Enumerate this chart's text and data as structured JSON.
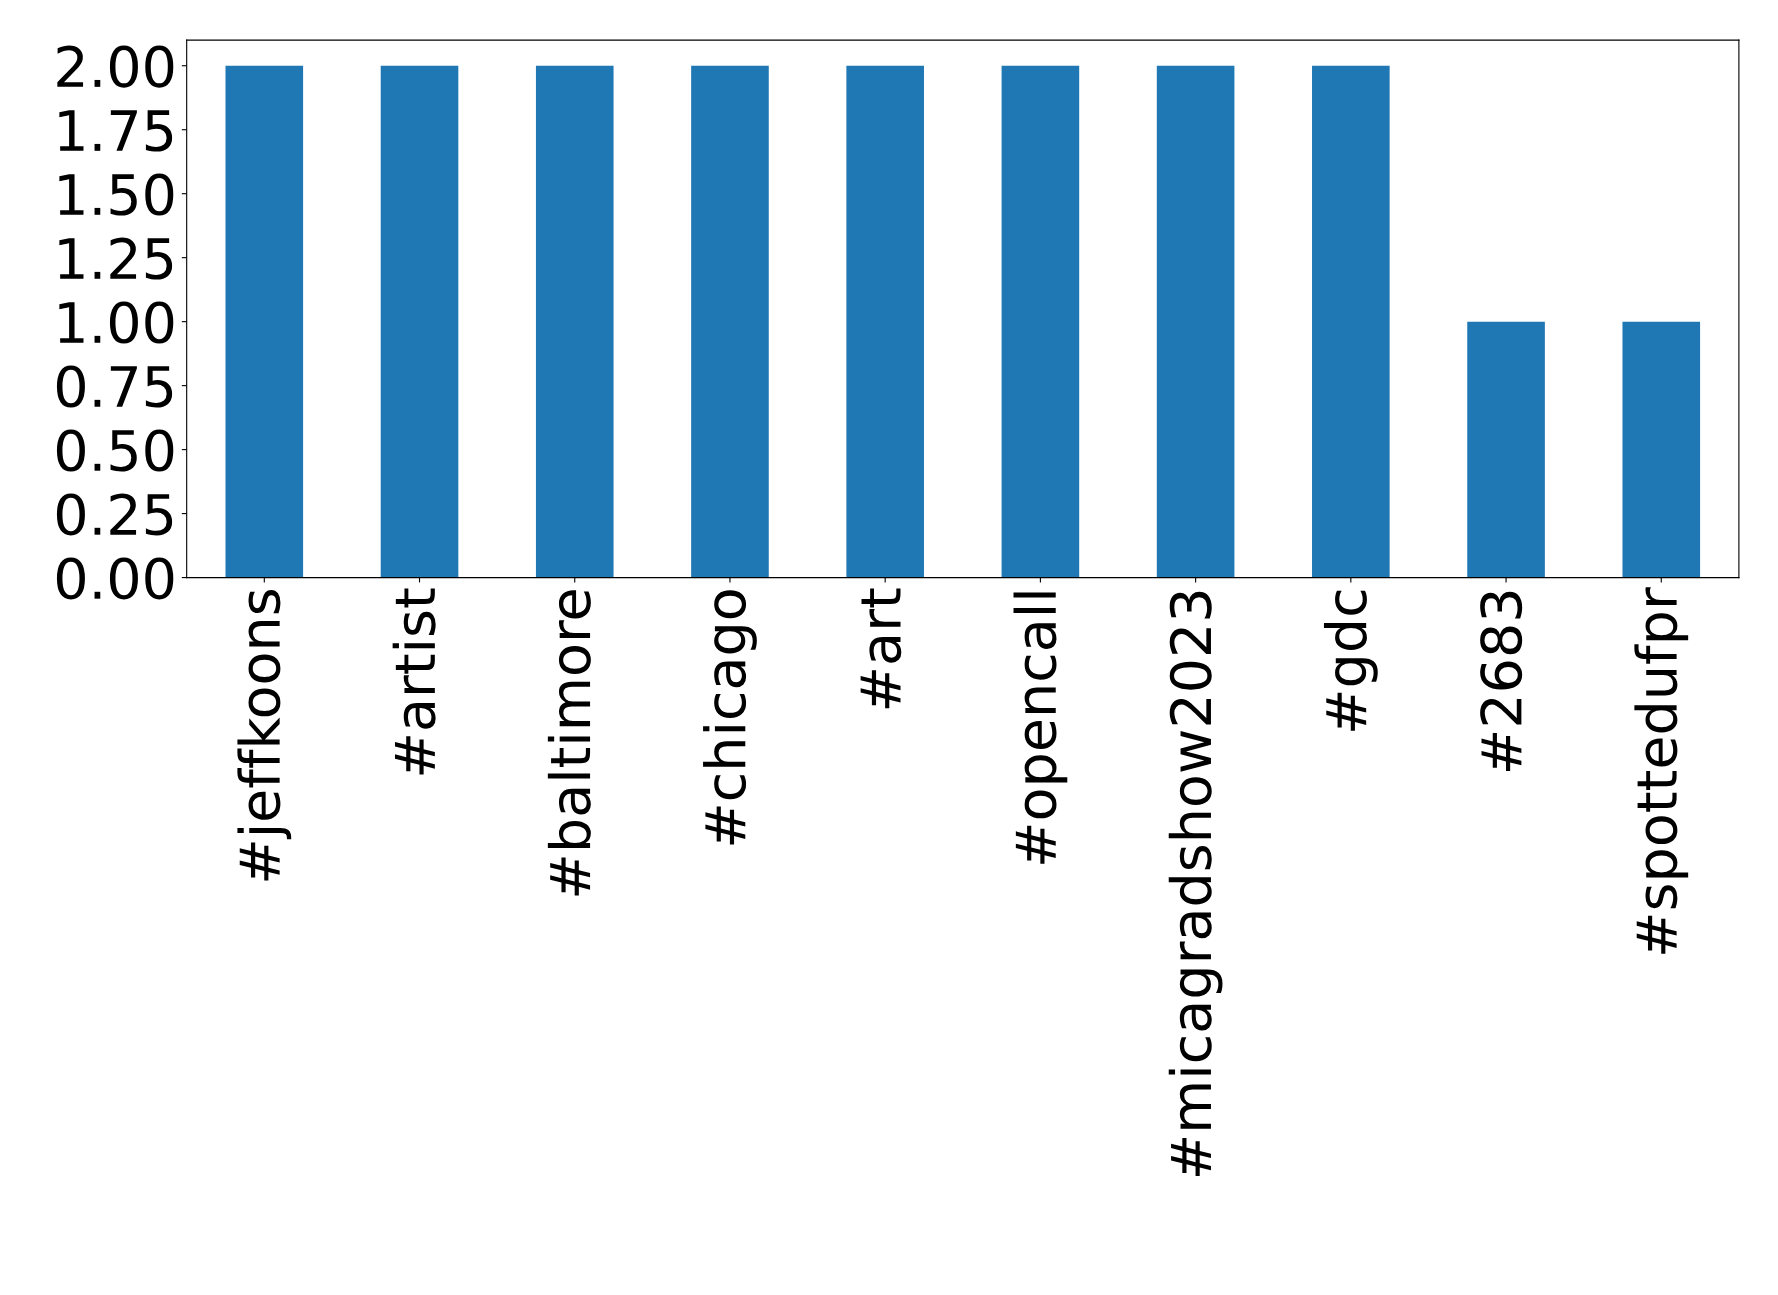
{
  "chart_data": {
    "type": "bar",
    "categories": [
      "#jeffkoons",
      "#artist",
      "#baltimore",
      "#chicago",
      "#art",
      "#opencall",
      "#micagradshow2023",
      "#gdc",
      "#2683",
      "#spottedufpr"
    ],
    "values": [
      2,
      2,
      2,
      2,
      2,
      2,
      2,
      2,
      1,
      1
    ],
    "color": "#1f77b4",
    "ylim": [
      0,
      2.1
    ],
    "yticks": [
      {
        "value": 0,
        "label": "0.00"
      },
      {
        "value": 0.25,
        "label": "0.25"
      },
      {
        "value": 0.5,
        "label": "0.50"
      },
      {
        "value": 0.75,
        "label": "0.75"
      },
      {
        "value": 1,
        "label": "1.00"
      },
      {
        "value": 1.25,
        "label": "1.25"
      },
      {
        "value": 1.5,
        "label": "1.50"
      },
      {
        "value": 1.75,
        "label": "1.75"
      },
      {
        "value": 2,
        "label": "2.00"
      }
    ],
    "grid": false
  }
}
